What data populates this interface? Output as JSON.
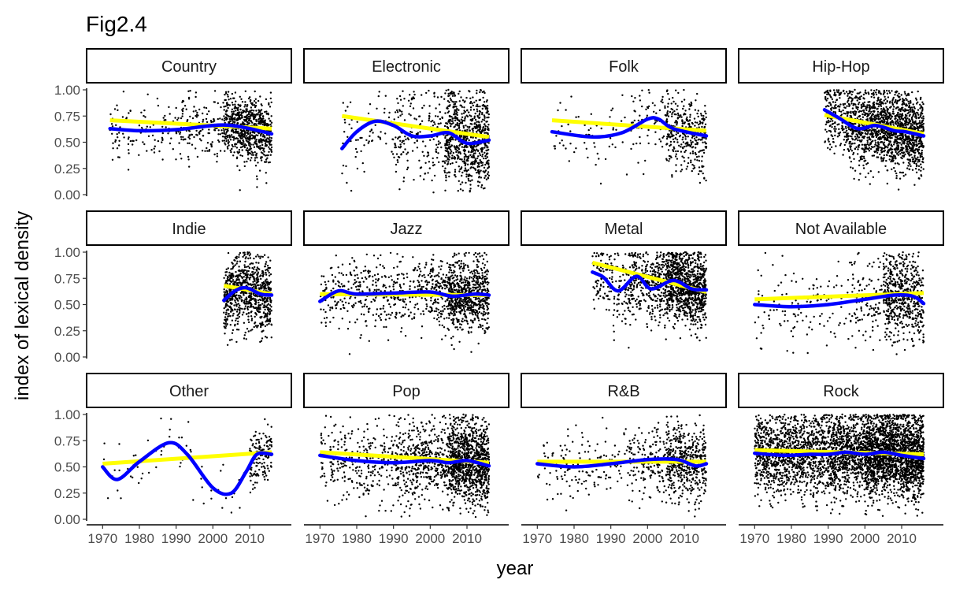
{
  "chart_data": {
    "type": "scatter",
    "title": "Fig2.4",
    "xlabel": "year",
    "ylabel": "index of lexical density",
    "xlim": [
      1968,
      2019
    ],
    "ylim": [
      0,
      1
    ],
    "x_ticks": [
      1970,
      1980,
      1990,
      2000,
      2010
    ],
    "x_tick_labels": [
      "1970",
      "1980",
      "1990",
      "2000",
      "2010"
    ],
    "y_ticks": [
      0,
      0.25,
      0.5,
      0.75,
      1
    ],
    "y_tick_labels": [
      "0.00",
      "0.25",
      "0.50",
      "0.75",
      "1.00"
    ],
    "grid": false,
    "facet_layout": {
      "rows": 3,
      "cols": 4
    },
    "colors": {
      "points": "#000000",
      "linear_fit": "#ffff00",
      "smooth_fit": "#0000ff",
      "strip_fill": "#ffffff",
      "strip_border": "#000000"
    },
    "panels": [
      {
        "name": "Country",
        "x_range": [
          1972,
          2016
        ],
        "density": [
          [
            1972,
            1990,
            0.3
          ],
          [
            1990,
            2003,
            0.6
          ],
          [
            2003,
            2016,
            3.0
          ]
        ],
        "y_center": 0.62,
        "y_spread": 0.15,
        "linear_fit": [
          [
            1972,
            0.71
          ],
          [
            2016,
            0.63
          ]
        ],
        "smooth_fit": [
          [
            1972,
            0.63
          ],
          [
            1980,
            0.61
          ],
          [
            1990,
            0.62
          ],
          [
            2000,
            0.66
          ],
          [
            2005,
            0.66
          ],
          [
            2010,
            0.63
          ],
          [
            2016,
            0.58
          ]
        ]
      },
      {
        "name": "Electronic",
        "x_range": [
          1976,
          2016
        ],
        "density": [
          [
            1976,
            1990,
            0.25
          ],
          [
            1990,
            2004,
            0.7
          ],
          [
            2004,
            2016,
            3.2
          ]
        ],
        "y_center": 0.56,
        "y_spread": 0.22,
        "linear_fit": [
          [
            1976,
            0.75
          ],
          [
            2016,
            0.55
          ]
        ],
        "smooth_fit": [
          [
            1976,
            0.44
          ],
          [
            1980,
            0.6
          ],
          [
            1985,
            0.7
          ],
          [
            1990,
            0.66
          ],
          [
            1995,
            0.56
          ],
          [
            2000,
            0.56
          ],
          [
            2005,
            0.59
          ],
          [
            2010,
            0.49
          ],
          [
            2016,
            0.52
          ]
        ]
      },
      {
        "name": "Folk",
        "x_range": [
          1974,
          2016
        ],
        "density": [
          [
            1974,
            1995,
            0.15
          ],
          [
            1995,
            2005,
            0.4
          ],
          [
            2005,
            2016,
            1.6
          ]
        ],
        "y_center": 0.62,
        "y_spread": 0.17,
        "linear_fit": [
          [
            1974,
            0.71
          ],
          [
            2016,
            0.61
          ]
        ],
        "smooth_fit": [
          [
            1974,
            0.6
          ],
          [
            1985,
            0.55
          ],
          [
            1993,
            0.59
          ],
          [
            2000,
            0.72
          ],
          [
            2003,
            0.72
          ],
          [
            2007,
            0.63
          ],
          [
            2016,
            0.56
          ]
        ]
      },
      {
        "name": "Hip-Hop",
        "x_range": [
          1989,
          2016
        ],
        "density": [
          [
            1989,
            1995,
            1.5
          ],
          [
            1995,
            2003,
            3.0
          ],
          [
            2003,
            2016,
            4.2
          ]
        ],
        "y_center": 0.62,
        "y_spread": 0.18,
        "linear_fit": [
          [
            1989,
            0.76
          ],
          [
            2016,
            0.58
          ]
        ],
        "smooth_fit": [
          [
            1989,
            0.81
          ],
          [
            1993,
            0.73
          ],
          [
            1998,
            0.63
          ],
          [
            2003,
            0.66
          ],
          [
            2008,
            0.61
          ],
          [
            2011,
            0.6
          ],
          [
            2016,
            0.56
          ]
        ]
      },
      {
        "name": "Indie",
        "x_range": [
          2003,
          2016
        ],
        "density": [
          [
            2003,
            2016,
            3.2
          ]
        ],
        "y_center": 0.62,
        "y_spread": 0.17,
        "linear_fit": [
          [
            2003,
            0.68
          ],
          [
            2016,
            0.6
          ]
        ],
        "smooth_fit": [
          [
            2003,
            0.54
          ],
          [
            2006,
            0.63
          ],
          [
            2009,
            0.66
          ],
          [
            2013,
            0.6
          ],
          [
            2016,
            0.59
          ]
        ]
      },
      {
        "name": "Jazz",
        "x_range": [
          1970,
          2016
        ],
        "density": [
          [
            1970,
            2000,
            0.7
          ],
          [
            2000,
            2005,
            1.4
          ],
          [
            2005,
            2016,
            3.2
          ]
        ],
        "y_center": 0.6,
        "y_spread": 0.17,
        "linear_fit": [
          [
            1970,
            0.6
          ],
          [
            2016,
            0.59
          ]
        ],
        "smooth_fit": [
          [
            1970,
            0.53
          ],
          [
            1975,
            0.63
          ],
          [
            1980,
            0.6
          ],
          [
            1990,
            0.61
          ],
          [
            2000,
            0.62
          ],
          [
            2006,
            0.58
          ],
          [
            2012,
            0.6
          ],
          [
            2016,
            0.59
          ]
        ]
      },
      {
        "name": "Metal",
        "x_range": [
          1985,
          2016
        ],
        "density": [
          [
            1985,
            1995,
            0.9
          ],
          [
            1995,
            2005,
            1.8
          ],
          [
            2005,
            2016,
            4.5
          ]
        ],
        "y_center": 0.68,
        "y_spread": 0.18,
        "linear_fit": [
          [
            1985,
            0.9
          ],
          [
            2016,
            0.62
          ]
        ],
        "smooth_fit": [
          [
            1985,
            0.81
          ],
          [
            1988,
            0.76
          ],
          [
            1992,
            0.63
          ],
          [
            1997,
            0.77
          ],
          [
            2001,
            0.65
          ],
          [
            2007,
            0.73
          ],
          [
            2012,
            0.65
          ],
          [
            2016,
            0.64
          ]
        ]
      },
      {
        "name": "Not Available",
        "x_range": [
          1970,
          2016
        ],
        "density": [
          [
            1970,
            1995,
            0.25
          ],
          [
            1995,
            2005,
            0.6
          ],
          [
            2005,
            2016,
            2.6
          ]
        ],
        "y_center": 0.56,
        "y_spread": 0.2,
        "linear_fit": [
          [
            1970,
            0.55
          ],
          [
            2016,
            0.61
          ]
        ],
        "smooth_fit": [
          [
            1970,
            0.5
          ],
          [
            1980,
            0.48
          ],
          [
            1990,
            0.5
          ],
          [
            2000,
            0.55
          ],
          [
            2008,
            0.59
          ],
          [
            2013,
            0.58
          ],
          [
            2016,
            0.51
          ]
        ]
      },
      {
        "name": "Other",
        "x_range": [
          1970,
          2016
        ],
        "density": [
          [
            1970,
            2010,
            0.08
          ],
          [
            2010,
            2016,
            1.2
          ]
        ],
        "y_center": 0.6,
        "y_spread": 0.15,
        "linear_fit": [
          [
            1970,
            0.53
          ],
          [
            2016,
            0.64
          ]
        ],
        "smooth_fit": [
          [
            1970,
            0.5
          ],
          [
            1974,
            0.38
          ],
          [
            1980,
            0.55
          ],
          [
            1988,
            0.73
          ],
          [
            1993,
            0.62
          ],
          [
            2000,
            0.3
          ],
          [
            2005,
            0.25
          ],
          [
            2009,
            0.45
          ],
          [
            2012,
            0.62
          ],
          [
            2016,
            0.62
          ]
        ]
      },
      {
        "name": "Pop",
        "x_range": [
          1970,
          2016
        ],
        "density": [
          [
            1970,
            1990,
            0.7
          ],
          [
            1990,
            2005,
            1.6
          ],
          [
            2005,
            2016,
            5.0
          ]
        ],
        "y_center": 0.55,
        "y_spread": 0.19,
        "linear_fit": [
          [
            1970,
            0.64
          ],
          [
            2016,
            0.54
          ]
        ],
        "smooth_fit": [
          [
            1970,
            0.61
          ],
          [
            1980,
            0.56
          ],
          [
            1990,
            0.54
          ],
          [
            2000,
            0.56
          ],
          [
            2005,
            0.54
          ],
          [
            2010,
            0.56
          ],
          [
            2016,
            0.51
          ]
        ]
      },
      {
        "name": "R&B",
        "x_range": [
          1970,
          2016
        ],
        "density": [
          [
            1970,
            1995,
            0.3
          ],
          [
            1995,
            2005,
            0.8
          ],
          [
            2005,
            2016,
            2.2
          ]
        ],
        "y_center": 0.56,
        "y_spread": 0.18,
        "linear_fit": [
          [
            1970,
            0.55
          ],
          [
            2016,
            0.55
          ]
        ],
        "smooth_fit": [
          [
            1970,
            0.53
          ],
          [
            1980,
            0.5
          ],
          [
            1990,
            0.53
          ],
          [
            2000,
            0.57
          ],
          [
            2008,
            0.57
          ],
          [
            2013,
            0.51
          ],
          [
            2016,
            0.53
          ]
        ]
      },
      {
        "name": "Rock",
        "x_range": [
          1970,
          2016
        ],
        "density": [
          [
            1970,
            1990,
            3.0
          ],
          [
            1990,
            2000,
            4.0
          ],
          [
            2000,
            2016,
            6.5
          ]
        ],
        "y_center": 0.6,
        "y_spread": 0.2,
        "linear_fit": [
          [
            1970,
            0.66
          ],
          [
            2016,
            0.62
          ]
        ],
        "smooth_fit": [
          [
            1970,
            0.63
          ],
          [
            1978,
            0.61
          ],
          [
            1985,
            0.62
          ],
          [
            1990,
            0.62
          ],
          [
            1995,
            0.64
          ],
          [
            2000,
            0.62
          ],
          [
            2005,
            0.64
          ],
          [
            2010,
            0.61
          ],
          [
            2016,
            0.58
          ]
        ]
      }
    ]
  }
}
